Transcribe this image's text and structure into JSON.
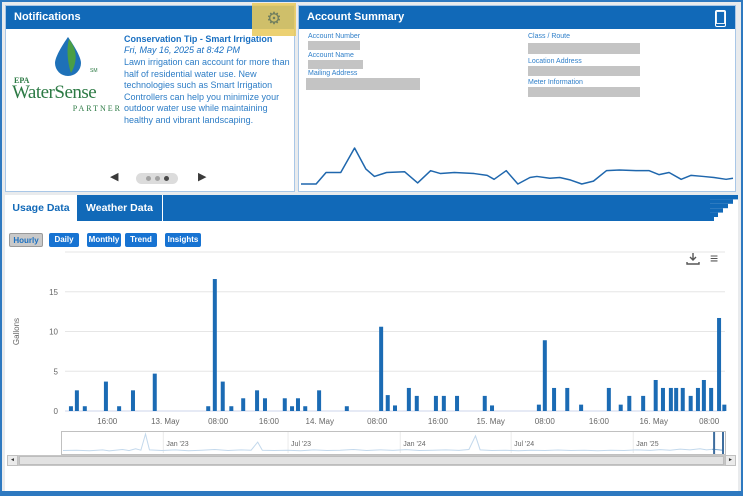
{
  "colors": {
    "header_blue": "#1169b8",
    "button_blue": "#1773d2",
    "bar_blue": "#1b6bb4",
    "sparkline_blue": "#1f67ad",
    "navigator_blue": "#79a9d4",
    "tip_text_blue": "#2d7dc6",
    "logo_green": "#2c7a44",
    "logo_blue": "#1e71b8",
    "leaf_green": "#4a9e45",
    "highlight_yellow": "#e9cb5f",
    "redaction_gray": "#c4c4c4"
  },
  "icons": {
    "gear": "⚙",
    "menu": "≡",
    "carousel_prev": "◀",
    "carousel_next": "▶",
    "scroll_left": "◄",
    "scroll_right": "►"
  },
  "notifications": {
    "title": "Notifications",
    "logo": {
      "epa": "EPA",
      "brand": "WaterSense",
      "partner": "PARTNER",
      "sm": "SM"
    },
    "tip": {
      "title": "Conservation Tip - Smart Irrigation",
      "date": "Fri, May 16, 2025 at 8:42 PM",
      "body": "Lawn irrigation can account for more than half of residential water use. New technologies such as Smart Irrigation Controllers can help you minimize your outdoor water use while maintaining healthy and vibrant landscaping."
    },
    "carousel": {
      "dot_count": 3,
      "active_index": 2
    }
  },
  "account_summary": {
    "title": "Account Summary",
    "fields_left": [
      "Account Number",
      "Account Name",
      "Mailing Address"
    ],
    "fields_right": [
      "Class / Route",
      "Location Address",
      "Meter Information"
    ]
  },
  "usage_section": {
    "tabs": [
      {
        "label": "Usage Data",
        "active": true
      },
      {
        "label": "Weather Data",
        "active": false
      }
    ],
    "view_buttons": [
      {
        "label": "Hourly",
        "active": true
      },
      {
        "label": "Daily",
        "active": false
      },
      {
        "label": "Monthly",
        "active": false
      },
      {
        "label": "Trend",
        "active": false
      },
      {
        "label": "Insights",
        "active": false
      }
    ]
  },
  "chart_data": [
    {
      "id": "hourly_usage",
      "type": "bar",
      "title": "",
      "xlabel": "",
      "ylabel": "Gallons",
      "ylim": [
        0,
        20
      ],
      "ytick_step": 5,
      "yticks": [
        0,
        5,
        10,
        15
      ],
      "grid": true,
      "bar_color": "#1b6bb4",
      "grid_color": "#e6e6e6",
      "axis_color": "#ccd6eb",
      "xticks": [
        [
          0.064,
          "16:00"
        ],
        [
          0.152,
          "13. May"
        ],
        [
          0.232,
          "08:00"
        ],
        [
          0.309,
          "16:00"
        ],
        [
          0.386,
          "14. May"
        ],
        [
          0.473,
          "08:00"
        ],
        [
          0.565,
          "16:00"
        ],
        [
          0.645,
          "15. May"
        ],
        [
          0.727,
          "08:00"
        ],
        [
          0.809,
          "16:00"
        ],
        [
          0.892,
          "16. May"
        ],
        [
          0.976,
          "08:00"
        ]
      ],
      "bars": [
        [
          0.009,
          0.6
        ],
        [
          0.018,
          2.6
        ],
        [
          0.03,
          0.6
        ],
        [
          0.062,
          3.7
        ],
        [
          0.082,
          0.6
        ],
        [
          0.103,
          2.6
        ],
        [
          0.136,
          4.7
        ],
        [
          0.217,
          0.6
        ],
        [
          0.227,
          16.6
        ],
        [
          0.239,
          3.7
        ],
        [
          0.252,
          0.6
        ],
        [
          0.27,
          1.6
        ],
        [
          0.291,
          2.6
        ],
        [
          0.303,
          1.6
        ],
        [
          0.333,
          1.6
        ],
        [
          0.344,
          0.6
        ],
        [
          0.353,
          1.6
        ],
        [
          0.364,
          0.6
        ],
        [
          0.385,
          2.6
        ],
        [
          0.427,
          0.6
        ],
        [
          0.479,
          10.6
        ],
        [
          0.489,
          2.0
        ],
        [
          0.5,
          0.7
        ],
        [
          0.521,
          2.9
        ],
        [
          0.533,
          1.9
        ],
        [
          0.562,
          1.9
        ],
        [
          0.574,
          1.9
        ],
        [
          0.594,
          1.9
        ],
        [
          0.636,
          1.9
        ],
        [
          0.647,
          0.7
        ],
        [
          0.718,
          0.8
        ],
        [
          0.727,
          8.9
        ],
        [
          0.741,
          2.9
        ],
        [
          0.761,
          2.9
        ],
        [
          0.782,
          0.8
        ],
        [
          0.824,
          2.9
        ],
        [
          0.842,
          0.8
        ],
        [
          0.855,
          1.9
        ],
        [
          0.876,
          1.9
        ],
        [
          0.895,
          3.9
        ],
        [
          0.906,
          2.9
        ],
        [
          0.918,
          2.9
        ],
        [
          0.926,
          2.9
        ],
        [
          0.936,
          2.9
        ],
        [
          0.948,
          1.9
        ],
        [
          0.959,
          2.9
        ],
        [
          0.968,
          3.9
        ],
        [
          0.979,
          2.9
        ],
        [
          0.991,
          11.7
        ],
        [
          0.999,
          0.8
        ]
      ]
    },
    {
      "id": "account_summary_sparkline",
      "type": "line",
      "color": "#1f67ad",
      "points": [
        [
          0,
          0
        ],
        [
          0.035,
          0
        ],
        [
          0.058,
          0.32
        ],
        [
          0.092,
          0.32
        ],
        [
          0.124,
          1.0
        ],
        [
          0.15,
          0.42
        ],
        [
          0.17,
          0.21
        ],
        [
          0.198,
          0.32
        ],
        [
          0.24,
          0.34
        ],
        [
          0.27,
          0.03
        ],
        [
          0.3,
          0.37
        ],
        [
          0.323,
          0.29
        ],
        [
          0.355,
          0.32
        ],
        [
          0.401,
          0.29
        ],
        [
          0.431,
          0.24
        ],
        [
          0.447,
          0.13
        ],
        [
          0.475,
          0.37
        ],
        [
          0.502,
          0
        ],
        [
          0.53,
          0.18
        ],
        [
          0.546,
          0.21
        ],
        [
          0.576,
          0.16
        ],
        [
          0.599,
          0.18
        ],
        [
          0.624,
          0.11
        ],
        [
          0.65,
          0
        ],
        [
          0.677,
          0.08
        ],
        [
          0.707,
          0.37
        ],
        [
          0.737,
          0.39
        ],
        [
          0.776,
          0.37
        ],
        [
          0.806,
          0.37
        ],
        [
          0.829,
          0.26
        ],
        [
          0.852,
          0.32
        ],
        [
          0.88,
          0.13
        ],
        [
          0.903,
          0.24
        ],
        [
          0.931,
          0.21
        ],
        [
          0.956,
          0.18
        ],
        [
          0.984,
          0.13
        ],
        [
          1.0,
          0.16
        ]
      ]
    },
    {
      "id": "navigator",
      "type": "line",
      "color": "#79a9d4",
      "labels": [
        [
          0.152,
          "Jan '23"
        ],
        [
          0.341,
          "Jul '23"
        ],
        [
          0.511,
          "Jan '24"
        ],
        [
          0.679,
          "Jul '24"
        ],
        [
          0.864,
          "Jan '25"
        ]
      ],
      "selected_range_start": 0.985,
      "points": [
        [
          0,
          0.08
        ],
        [
          0.02,
          0.1
        ],
        [
          0.04,
          0.07
        ],
        [
          0.06,
          0.12
        ],
        [
          0.07,
          0.06
        ],
        [
          0.09,
          0.14
        ],
        [
          0.1,
          0.08
        ],
        [
          0.11,
          0.18
        ],
        [
          0.118,
          0.1
        ],
        [
          0.125,
          1.0
        ],
        [
          0.131,
          0.12
        ],
        [
          0.15,
          0.08
        ],
        [
          0.17,
          0.12
        ],
        [
          0.19,
          0.07
        ],
        [
          0.21,
          0.1
        ],
        [
          0.23,
          0.14
        ],
        [
          0.25,
          0.08
        ],
        [
          0.27,
          0.12
        ],
        [
          0.285,
          0.1
        ],
        [
          0.295,
          0.55
        ],
        [
          0.302,
          0.1
        ],
        [
          0.32,
          0.08
        ],
        [
          0.34,
          0.1
        ],
        [
          0.36,
          0.07
        ],
        [
          0.38,
          0.12
        ],
        [
          0.4,
          0.08
        ],
        [
          0.42,
          0.1
        ],
        [
          0.44,
          0.14
        ],
        [
          0.46,
          0.08
        ],
        [
          0.48,
          0.12
        ],
        [
          0.5,
          0.09
        ],
        [
          0.52,
          0.13
        ],
        [
          0.54,
          0.08
        ],
        [
          0.56,
          0.1
        ],
        [
          0.58,
          0.12
        ],
        [
          0.6,
          0.09
        ],
        [
          0.615,
          0.14
        ],
        [
          0.625,
          0.9
        ],
        [
          0.632,
          0.12
        ],
        [
          0.65,
          0.08
        ],
        [
          0.67,
          0.1
        ],
        [
          0.69,
          0.07
        ],
        [
          0.71,
          0.1
        ],
        [
          0.73,
          0.08
        ],
        [
          0.75,
          0.11
        ],
        [
          0.77,
          0.08
        ],
        [
          0.79,
          0.1
        ],
        [
          0.81,
          0.07
        ],
        [
          0.83,
          0.1
        ],
        [
          0.85,
          0.08
        ],
        [
          0.87,
          0.12
        ],
        [
          0.89,
          0.09
        ],
        [
          0.905,
          0.13
        ],
        [
          0.92,
          0.1
        ],
        [
          0.935,
          0.16
        ],
        [
          0.95,
          0.12
        ],
        [
          0.965,
          0.18
        ],
        [
          0.975,
          0.12
        ],
        [
          0.985,
          0.15
        ],
        [
          1.0,
          0.1
        ]
      ]
    }
  ]
}
